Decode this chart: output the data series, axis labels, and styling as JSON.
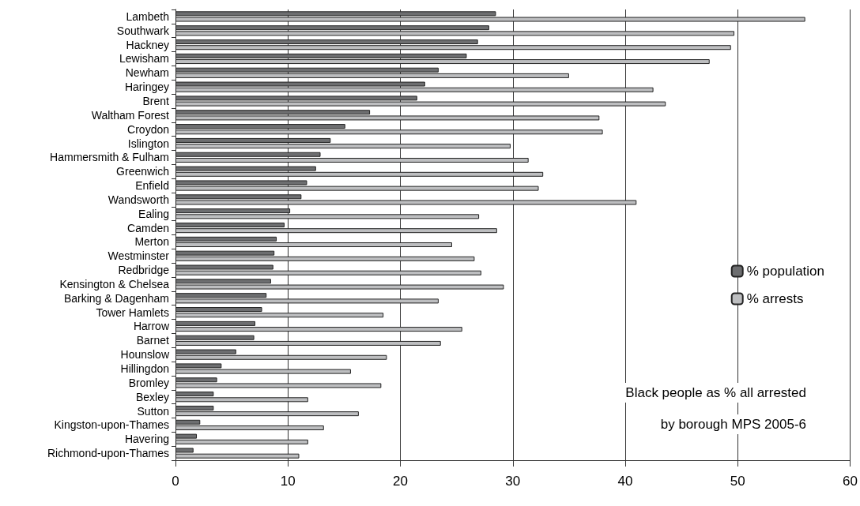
{
  "chart_data": {
    "type": "bar",
    "orientation": "horizontal",
    "title": "Black people as % all arrested\nby borough MPS 2005-6",
    "categories": [
      "Lambeth",
      "Southwark",
      "Hackney",
      "Lewisham",
      "Newham",
      "Haringey",
      "Brent",
      "Waltham Forest",
      "Croydon",
      "Islington",
      "Hammersmith & Fulham",
      "Greenwich",
      "Enfield",
      "Wandsworth",
      "Ealing",
      "Camden",
      "Merton",
      "Westminster",
      "Redbridge",
      "Kensington & Chelsea",
      "Barking & Dagenham",
      "Tower Hamlets",
      "Harrow",
      "Barnet",
      "Hounslow",
      "Hillingdon",
      "Bromley",
      "Bexley",
      "Sutton",
      "Kingston-upon-Thames",
      "Havering",
      "Richmond-upon-Thames"
    ],
    "series": [
      {
        "name": "% population",
        "color": "#6d6e70",
        "values": [
          28.5,
          27.9,
          26.9,
          25.9,
          23.4,
          22.2,
          21.5,
          17.3,
          15.1,
          13.8,
          12.9,
          12.5,
          11.7,
          11.2,
          10.2,
          9.7,
          9.0,
          8.8,
          8.7,
          8.5,
          8.1,
          7.7,
          7.1,
          7.0,
          5.4,
          4.1,
          3.7,
          3.4,
          3.4,
          2.2,
          1.9,
          1.6
        ]
      },
      {
        "name": "% arrests",
        "color": "#bdbec0",
        "values": [
          56.0,
          49.7,
          49.4,
          47.5,
          35.0,
          42.5,
          43.6,
          37.7,
          38.0,
          29.8,
          31.4,
          32.7,
          32.3,
          41.0,
          27.0,
          28.6,
          24.6,
          26.6,
          27.2,
          29.2,
          23.4,
          18.5,
          25.5,
          23.6,
          18.8,
          15.6,
          18.3,
          11.8,
          16.3,
          13.2,
          11.8,
          11.0
        ]
      }
    ],
    "xlim": [
      0,
      60
    ],
    "xticks": [
      0,
      10,
      20,
      30,
      40,
      50,
      60
    ],
    "grid": "x",
    "legend": "right"
  }
}
